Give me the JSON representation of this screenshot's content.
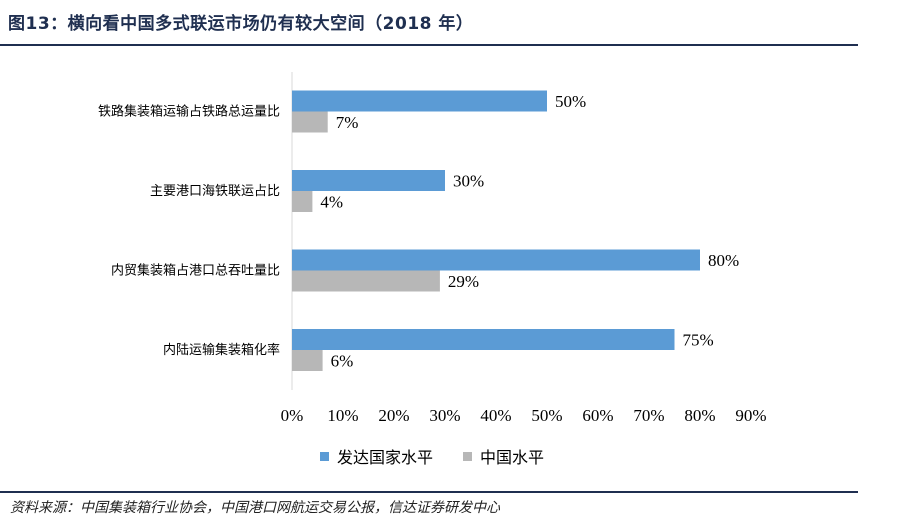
{
  "header": {
    "title": "图13：横向看中国多式联运市场仍有较大空间（2018 年）"
  },
  "footer": {
    "source": "资料来源：中国集装箱行业协会，中国港口网航运交易公报，信达证券研发中心"
  },
  "colors": {
    "series1": "#5b9bd5",
    "series2": "#b7b7b7",
    "rule": "#1f2f50"
  },
  "chart_data": {
    "type": "bar",
    "orientation": "horizontal",
    "title": "",
    "xlabel": "",
    "ylabel": "",
    "xlim": [
      0,
      90
    ],
    "unit": "%",
    "ticks": [
      "0%",
      "10%",
      "20%",
      "30%",
      "40%",
      "50%",
      "60%",
      "70%",
      "80%",
      "90%"
    ],
    "categories": [
      "铁路集装箱运输占铁路总运量比",
      "主要港口海铁联运占比",
      "内贸集装箱占港口总吞吐量比",
      "内陆运输集装箱化率"
    ],
    "series": [
      {
        "name": "发达国家水平",
        "values": [
          50,
          30,
          80,
          75
        ],
        "labels": [
          "50%",
          "30%",
          "80%",
          "75%"
        ]
      },
      {
        "name": "中国水平",
        "values": [
          7,
          4,
          29,
          6
        ],
        "labels": [
          "7%",
          "4%",
          "29%",
          "6%"
        ]
      }
    ],
    "legend_position": "bottom",
    "grid": false
  }
}
